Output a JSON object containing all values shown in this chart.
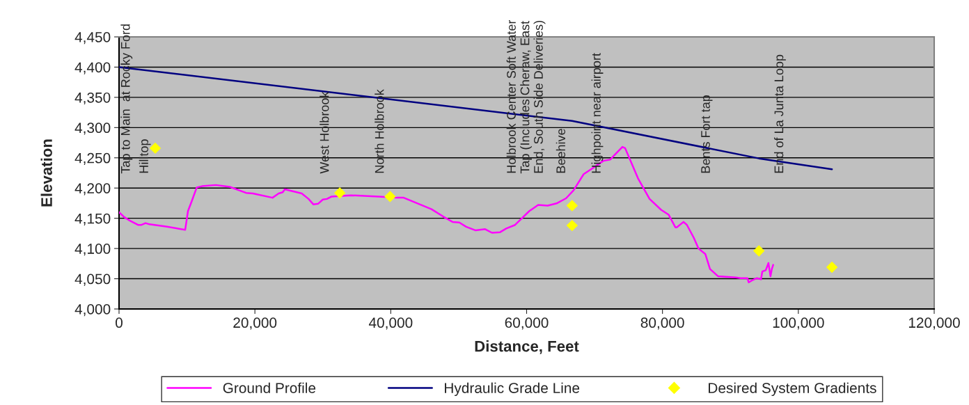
{
  "chart_data": {
    "type": "line",
    "xlabel": "Distance, Feet",
    "ylabel": "Elevation",
    "xlim": [
      0,
      120000
    ],
    "ylim": [
      4000,
      4450
    ],
    "xticks": [
      0,
      {
        "value": 20000,
        "label": "20,000"
      },
      {
        "value": 40000,
        "label": "40,000"
      },
      {
        "value": 60000,
        "label": "60,000"
      },
      {
        "value": 80000,
        "label": "80,000"
      },
      {
        "value": 100000,
        "label": "100,000"
      },
      {
        "value": 120000,
        "label": "120,000"
      }
    ],
    "yticks": [
      {
        "value": 4000,
        "label": "4,000"
      },
      {
        "value": 4050,
        "label": "4,050"
      },
      {
        "value": 4100,
        "label": "4,100"
      },
      {
        "value": 4150,
        "label": "4,150"
      },
      {
        "value": 4200,
        "label": "4,200"
      },
      {
        "value": 4250,
        "label": "4,250"
      },
      {
        "value": 4300,
        "label": "4,300"
      },
      {
        "value": 4350,
        "label": "4,350"
      },
      {
        "value": 4400,
        "label": "4,400"
      },
      {
        "value": 4450,
        "label": "4,450"
      }
    ],
    "grid": "y",
    "legend": "bottom",
    "series": [
      {
        "name": "Ground Profile",
        "type": "line",
        "color": "#ff00ff",
        "marker": "none",
        "x": [
          0,
          750,
          1600,
          2800,
          3300,
          3900,
          4500,
          7070,
          9740,
          10150,
          10660,
          11440,
          12200,
          14250,
          16300,
          18700,
          19700,
          22600,
          23500,
          24100,
          24400,
          26900,
          27900,
          28600,
          29300,
          30000,
          30600,
          31300,
          34100,
          38200,
          40900,
          41900,
          44700,
          46000,
          47700,
          49100,
          50100,
          51100,
          52500,
          53900,
          54900,
          56100,
          57000,
          58300,
          60400,
          61700,
          63100,
          64500,
          65800,
          66900,
          68400,
          69600,
          71300,
          72300,
          73400,
          74100,
          74500,
          76400,
          78100,
          79800,
          80900,
          81900,
          82100,
          83100,
          83600,
          84600,
          85300,
          86300,
          87000,
          88200,
          90800,
          91500,
          92500,
          92700,
          93300,
          93900,
          94500,
          94700,
          95200,
          95600,
          95900,
          96100,
          96300
        ],
        "values": [
          4160,
          4152,
          4146,
          4139,
          4139,
          4142,
          4140,
          4136,
          4131,
          4162,
          4177,
          4201,
          4203,
          4205,
          4202,
          4192,
          4191,
          4184,
          4191,
          4193,
          4198,
          4191,
          4182,
          4173,
          4174,
          4181,
          4182,
          4186,
          4188,
          4186,
          4184,
          4184,
          4171,
          4165,
          4153,
          4144,
          4143,
          4136,
          4130,
          4132,
          4126,
          4127,
          4133,
          4139,
          4162,
          4172,
          4171,
          4175,
          4183,
          4196,
          4223,
          4232,
          4245,
          4247,
          4260,
          4268,
          4266,
          4216,
          4182,
          4164,
          4156,
          4135,
          4135,
          4144,
          4139,
          4118,
          4100,
          4091,
          4066,
          4054,
          4052,
          4051,
          4051,
          4044,
          4048,
          4051,
          4049,
          4062,
          4064,
          4076,
          4054,
          4066,
          4073
        ]
      },
      {
        "name": "Hydraulic Grade Line",
        "type": "line",
        "color": "#000080",
        "marker": "none",
        "x": [
          0,
          66700,
          94200,
          104950
        ],
        "values": [
          4400,
          4311,
          4249,
          4231
        ]
      },
      {
        "name": "Desired System Gradients",
        "type": "scatter",
        "color": "#ffff00",
        "marker": "diamond",
        "x": [
          5330,
          32500,
          39900,
          66700,
          66700,
          94200,
          104950
        ],
        "values": [
          4266,
          4192,
          4186,
          4171,
          4138,
          4096,
          4069
        ]
      }
    ],
    "annotations": [
      "Tap to Main  at Rocky Ford",
      "Hilltop",
      "West Holbrook",
      "North Holbrook",
      "Holbrook Center Soft Water\nTap (Includes Cheraw, East\nEnd, South Side Deliveries)",
      "Beehive",
      "Highpoint near airport",
      "Bents Fort tap",
      "End of La Junta Loop"
    ]
  }
}
